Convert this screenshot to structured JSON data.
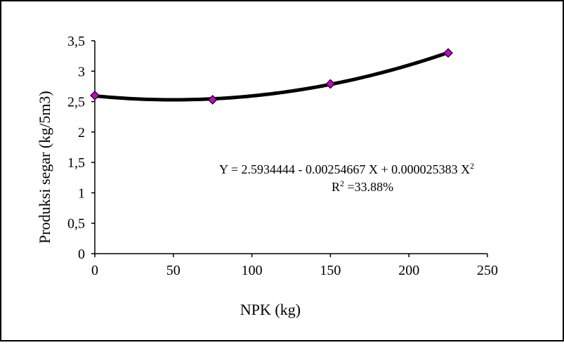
{
  "chart_data": {
    "type": "scatter",
    "xlabel": "NPK (kg)",
    "ylabel": "Produksi segar (kg/5m3)",
    "xlim": [
      0,
      250
    ],
    "ylim": [
      0,
      3.5
    ],
    "x_ticks": [
      {
        "value": 0,
        "label": "0"
      },
      {
        "value": 50,
        "label": "50"
      },
      {
        "value": 100,
        "label": "100"
      },
      {
        "value": 150,
        "label": "150"
      },
      {
        "value": 200,
        "label": "200"
      },
      {
        "value": 250,
        "label": "250"
      }
    ],
    "y_ticks": [
      {
        "value": 0,
        "label": "0"
      },
      {
        "value": 0.5,
        "label": "0,5"
      },
      {
        "value": 1,
        "label": "1"
      },
      {
        "value": 1.5,
        "label": "1,5"
      },
      {
        "value": 2,
        "label": "2"
      },
      {
        "value": 2.5,
        "label": "2,5"
      },
      {
        "value": 3,
        "label": "3"
      },
      {
        "value": 3.5,
        "label": "3,5"
      }
    ],
    "series": [
      {
        "points": [
          {
            "x": 0,
            "y": 2.6
          },
          {
            "x": 75,
            "y": 2.53
          },
          {
            "x": 150,
            "y": 2.79
          },
          {
            "x": 225,
            "y": 3.3
          }
        ],
        "marker": "diamond",
        "marker_color": "#CC00CC"
      }
    ],
    "trendline": {
      "type": "polynomial",
      "coefficients": [
        2.5934444,
        -0.00254667,
        2.5383e-05
      ],
      "x_range": [
        0,
        225
      ],
      "color": "#000000"
    },
    "grid": false,
    "legend": "none",
    "annotations": {
      "equation_main": "Y  = 2.5934444 - 0.00254667 X  + 0.000025383 X",
      "equation_exp": "2",
      "r2_prefix": "R",
      "r2_exp": "2",
      "r2_value": " =33.88%"
    }
  }
}
